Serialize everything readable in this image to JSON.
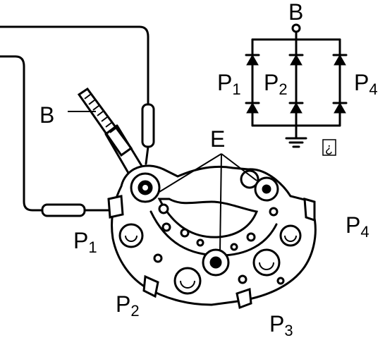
{
  "labels": {
    "probe_b": "B",
    "common_e": "E",
    "p1": {
      "main": "P",
      "sub": "1"
    },
    "p2": {
      "main": "P",
      "sub": "2"
    },
    "p3": {
      "main": "P",
      "sub": "3"
    },
    "p4": {
      "main": "P",
      "sub": "4"
    }
  },
  "schematic": {
    "terminal_b": "B",
    "p1": {
      "main": "P",
      "sub": "1"
    },
    "p2": {
      "main": "P",
      "sub": "2"
    },
    "p4": {
      "main": "P",
      "sub": "4"
    },
    "corner_mark": "¿"
  }
}
